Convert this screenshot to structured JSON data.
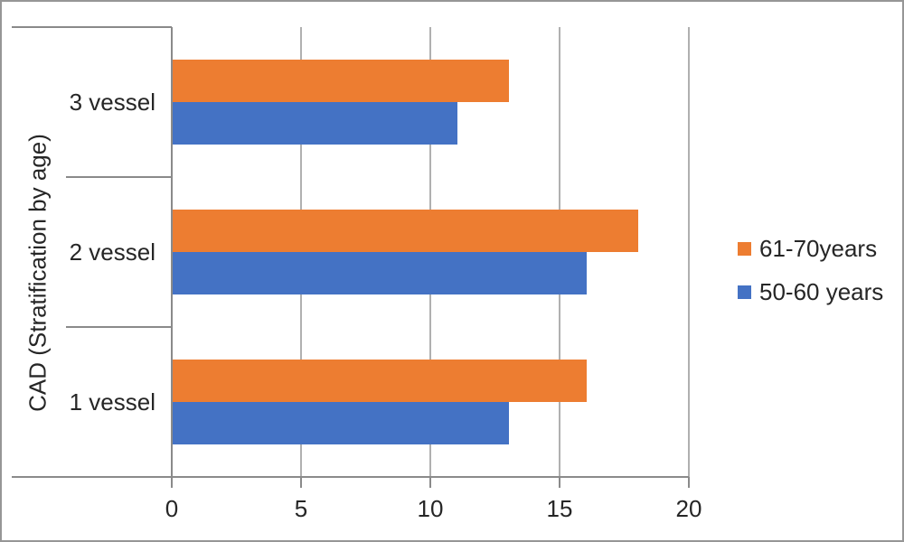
{
  "chart_data": {
    "type": "bar",
    "orientation": "horizontal",
    "title": "",
    "ylabel": "CAD (Stratification by age)",
    "xlabel": "",
    "categories": [
      "3 vessel",
      "2 vessel",
      "1 vessel"
    ],
    "series": [
      {
        "name": "61-70years",
        "color": "#ED7D31",
        "values": [
          13,
          18,
          16
        ]
      },
      {
        "name": "50-60 years",
        "color": "#4472C4",
        "values": [
          11,
          16,
          13
        ]
      }
    ],
    "xlim": [
      0,
      20
    ],
    "xticks": [
      0,
      5,
      10,
      15,
      20
    ],
    "grid": true,
    "legend_position": "right"
  },
  "colors": {
    "axis_line": "#8a8a8a",
    "gridline": "#b0b0b0",
    "text": "#262626",
    "frame_border": "#969696",
    "background": "#ffffff",
    "series_orange": "#ED7D31",
    "series_blue": "#4472C4"
  }
}
